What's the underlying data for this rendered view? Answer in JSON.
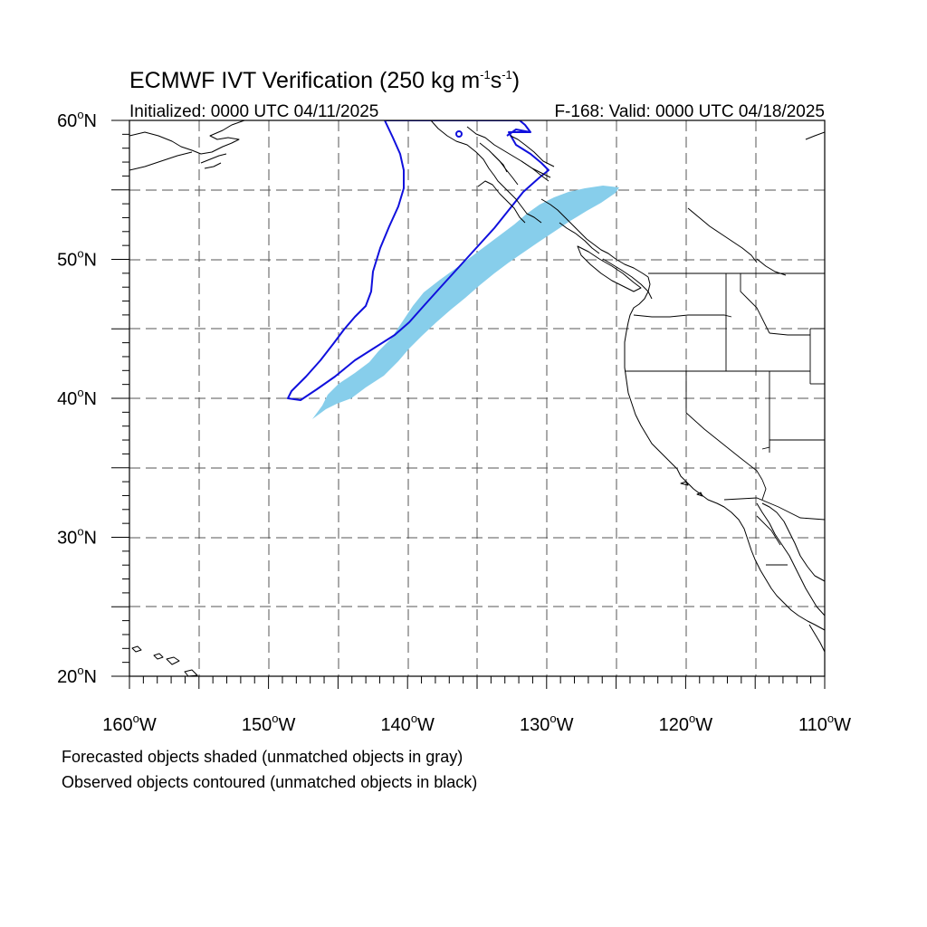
{
  "title": {
    "main": "ECMWF IVT Verification (250 kg m",
    "unit_exp1": "-1",
    "unit_mid": "s",
    "unit_exp2": "-1",
    "unit_close": ")"
  },
  "subtitle": {
    "initialized": "Initialized: 0000 UTC 04/11/2025",
    "valid": "F-168: Valid: 0000 UTC 04/18/2025"
  },
  "map": {
    "lon_range": [
      -160,
      -110
    ],
    "lat_range": [
      20,
      60
    ],
    "lat_labels": [
      {
        "lat": 60,
        "label": "60",
        "hemi": "N"
      },
      {
        "lat": 50,
        "label": "50",
        "hemi": "N"
      },
      {
        "lat": 40,
        "label": "40",
        "hemi": "N"
      },
      {
        "lat": 30,
        "label": "30",
        "hemi": "N"
      },
      {
        "lat": 20,
        "label": "20",
        "hemi": "N"
      }
    ],
    "lon_labels": [
      {
        "lon": -160,
        "label": "160",
        "hemi": "W"
      },
      {
        "lon": -150,
        "label": "150",
        "hemi": "W"
      },
      {
        "lon": -140,
        "label": "140",
        "hemi": "W"
      },
      {
        "lon": -130,
        "label": "130",
        "hemi": "W"
      },
      {
        "lon": -120,
        "label": "120",
        "hemi": "W"
      },
      {
        "lon": -110,
        "label": "110",
        "hemi": "W"
      }
    ],
    "degree_symbol": "o",
    "colors": {
      "forecast_shade": "#87ceeb",
      "observed_contour": "#1010dd",
      "coastline": "#000000",
      "grid": "#555555"
    }
  },
  "legend_notes": {
    "line1": "Forecasted objects shaded (unmatched objects in gray)",
    "line2": "Observed objects contoured (unmatched objects in black)"
  }
}
